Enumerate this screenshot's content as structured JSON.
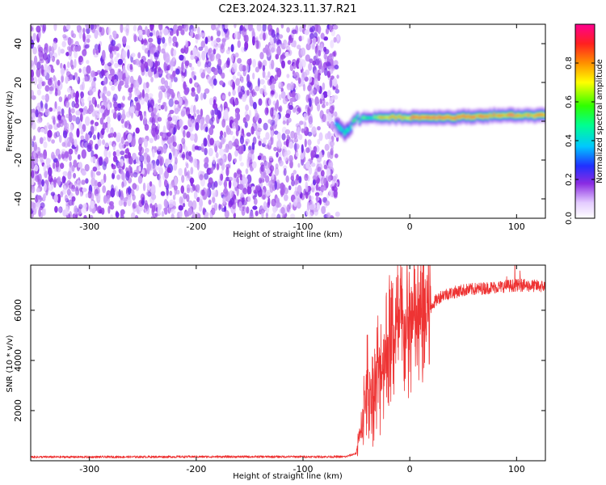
{
  "figure_title": "C2E3.2024.323.11.37.R21",
  "chart_data": [
    {
      "type": "heatmap",
      "title": "",
      "xlabel": "Height of straight line (km)",
      "ylabel": "Frequency (Hz)",
      "xlim": [
        -355,
        127
      ],
      "ylim": [
        -50,
        50
      ],
      "xticks": [
        -300,
        -200,
        -100,
        0,
        100
      ],
      "yticks": [
        -40,
        -20,
        0,
        20,
        40
      ],
      "colorbar": {
        "label": "Normalized spectral amplitude",
        "range": [
          0,
          1
        ],
        "ticks": [
          "0.0",
          "0.2",
          "0.4",
          "0.6",
          "0.8"
        ],
        "tick_values": [
          0.0,
          0.2,
          0.4,
          0.6,
          0.8
        ]
      },
      "noise_region_x": [
        -355,
        -70
      ],
      "signal_band": {
        "x_range": [
          -70,
          127
        ],
        "center_freq_points": [
          {
            "x": -70,
            "y": -2
          },
          {
            "x": -64,
            "y": -6
          },
          {
            "x": -58,
            "y": -3
          },
          {
            "x": -50,
            "y": 1
          },
          {
            "x": -40,
            "y": 2
          },
          {
            "x": -20,
            "y": 2
          },
          {
            "x": 0,
            "y": 2
          },
          {
            "x": 40,
            "y": 2
          },
          {
            "x": 80,
            "y": 3
          },
          {
            "x": 127,
            "y": 3
          }
        ],
        "peak_amplitude": 1.0
      }
    },
    {
      "type": "line",
      "title": "",
      "xlabel": "Height of straight line (km)",
      "ylabel": "SNR (10 * v/v)",
      "xlim": [
        -355,
        127
      ],
      "ylim": [
        0,
        7800
      ],
      "xticks": [
        -300,
        -200,
        -100,
        0,
        100
      ],
      "yticks": [
        2000,
        4000,
        6000
      ],
      "series": [
        {
          "color": "#ee3333",
          "points": [
            {
              "x": -355,
              "y": 150
            },
            {
              "x": -300,
              "y": 150
            },
            {
              "x": -200,
              "y": 160
            },
            {
              "x": -100,
              "y": 160
            },
            {
              "x": -60,
              "y": 160
            },
            {
              "x": -50,
              "y": 300
            },
            {
              "x": -45,
              "y": 1500
            },
            {
              "x": -40,
              "y": 3000
            },
            {
              "x": -35,
              "y": 2500
            },
            {
              "x": -30,
              "y": 3500
            },
            {
              "x": -25,
              "y": 4000
            },
            {
              "x": -20,
              "y": 4500
            },
            {
              "x": -15,
              "y": 5000
            },
            {
              "x": -10,
              "y": 5200
            },
            {
              "x": 0,
              "y": 5300
            },
            {
              "x": 10,
              "y": 5500
            },
            {
              "x": 20,
              "y": 6200
            },
            {
              "x": 30,
              "y": 6600
            },
            {
              "x": 50,
              "y": 6800
            },
            {
              "x": 75,
              "y": 6900
            },
            {
              "x": 100,
              "y": 7000
            },
            {
              "x": 127,
              "y": 6950
            }
          ]
        }
      ]
    }
  ]
}
